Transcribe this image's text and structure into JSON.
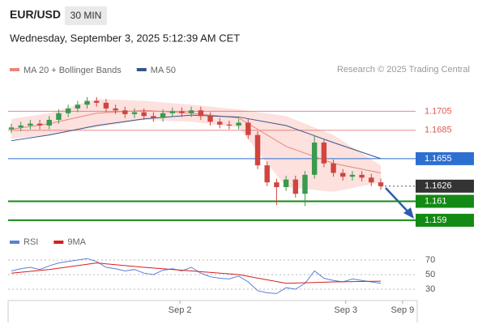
{
  "header": {
    "symbol": "EUR/USD",
    "timeframe": "30 MIN",
    "timestamp": "Wednesday, September 3, 2025 5:12:39 AM CET"
  },
  "chart_data": [
    {
      "type": "candlestick",
      "copyright": "Research © 2025 Trading Central",
      "x": [
        1,
        2,
        3,
        4,
        5,
        6,
        7,
        8,
        9,
        10,
        11,
        12,
        13,
        14,
        15,
        16,
        17,
        18,
        19,
        20,
        21,
        22,
        23,
        24,
        25,
        26,
        27,
        28,
        29,
        30,
        31,
        32,
        33,
        34,
        35,
        36,
        37,
        38,
        39,
        40
      ],
      "open": [
        1.1686,
        1.1688,
        1.169,
        1.1692,
        1.169,
        1.1696,
        1.1703,
        1.1708,
        1.1712,
        1.1716,
        1.1714,
        1.1708,
        1.1706,
        1.1702,
        1.1704,
        1.17,
        1.1698,
        1.1703,
        1.1705,
        1.1703,
        1.1706,
        1.17,
        1.1694,
        1.1691,
        1.169,
        1.1693,
        1.168,
        1.1648,
        1.163,
        1.1625,
        1.1633,
        1.1618,
        1.1638,
        1.1672,
        1.165,
        1.164,
        1.1636,
        1.1638,
        1.1635,
        1.163
      ],
      "high": [
        1.1692,
        1.1694,
        1.1696,
        1.1696,
        1.17,
        1.1707,
        1.1712,
        1.1716,
        1.172,
        1.172,
        1.1718,
        1.1712,
        1.171,
        1.1708,
        1.1708,
        1.1704,
        1.1707,
        1.1709,
        1.1709,
        1.171,
        1.171,
        1.1704,
        1.1698,
        1.1695,
        1.1697,
        1.1697,
        1.1684,
        1.1652,
        1.1634,
        1.1637,
        1.1637,
        1.1642,
        1.168,
        1.1676,
        1.1654,
        1.1644,
        1.1642,
        1.1642,
        1.1639,
        1.1634
      ],
      "low": [
        1.1682,
        1.1684,
        1.1686,
        1.1686,
        1.1686,
        1.1692,
        1.1699,
        1.1704,
        1.1708,
        1.171,
        1.1704,
        1.1702,
        1.1698,
        1.1698,
        1.1696,
        1.1694,
        1.1694,
        1.1699,
        1.1699,
        1.1699,
        1.1696,
        1.169,
        1.1687,
        1.1686,
        1.1686,
        1.1676,
        1.1644,
        1.1626,
        1.1606,
        1.1621,
        1.1614,
        1.1605,
        1.1634,
        1.1646,
        1.1636,
        1.1632,
        1.1632,
        1.1631,
        1.1626,
        1.1622
      ],
      "close": [
        1.1688,
        1.169,
        1.1692,
        1.169,
        1.1696,
        1.1703,
        1.1708,
        1.1712,
        1.1716,
        1.1714,
        1.1708,
        1.1706,
        1.1702,
        1.1704,
        1.17,
        1.1698,
        1.1703,
        1.1705,
        1.1703,
        1.1706,
        1.17,
        1.1694,
        1.1691,
        1.169,
        1.1693,
        1.168,
        1.1648,
        1.163,
        1.1625,
        1.1633,
        1.1618,
        1.1638,
        1.1672,
        1.165,
        1.164,
        1.1636,
        1.1638,
        1.1635,
        1.163,
        1.1626
      ],
      "up_color": "#3a9a4e",
      "down_color": "#d0453f",
      "series": [
        {
          "name": "MA 20 + Bollinger Bands",
          "color": "#e8857c",
          "x": [
            1,
            5,
            10,
            15,
            20,
            25,
            30,
            35,
            40
          ],
          "values": [
            1.1686,
            1.1692,
            1.1703,
            1.1706,
            1.1703,
            1.1698,
            1.1668,
            1.165,
            1.164
          ]
        },
        {
          "name": "MA 50",
          "color": "#34558f",
          "x": [
            1,
            5,
            10,
            15,
            20,
            25,
            30,
            35,
            40
          ],
          "values": [
            1.1674,
            1.168,
            1.169,
            1.1697,
            1.1701,
            1.1699,
            1.169,
            1.1672,
            1.1655
          ]
        }
      ],
      "band_x": [
        1,
        5,
        10,
        15,
        20,
        25,
        30,
        35,
        40
      ],
      "band_upper": [
        1.1697,
        1.1703,
        1.1718,
        1.1716,
        1.1712,
        1.1707,
        1.17,
        1.168,
        1.1648
      ],
      "band_lower": [
        1.1676,
        1.168,
        1.1688,
        1.1696,
        1.1694,
        1.1688,
        1.1625,
        1.162,
        1.163
      ],
      "band_color": "#fbd9d6",
      "levels": [
        {
          "value": 1.1705,
          "color": "#e05a52"
        },
        {
          "value": 1.1685,
          "color": "#e05a52"
        },
        {
          "value": 1.1655,
          "color": "#2d6fd1"
        },
        {
          "value": 1.1626,
          "color": "#333333"
        },
        {
          "value": 1.161,
          "color": "#138a13"
        },
        {
          "value": 1.159,
          "color": "#138a13"
        }
      ],
      "ylim": [
        1.1566,
        1.1737
      ],
      "xlim": [
        1,
        40
      ],
      "xticks": [
        {
          "value": 18.8,
          "label": "Sep 2"
        },
        {
          "value": 36.3,
          "label": "Sep 3"
        },
        {
          "value": 42.3,
          "label": "Sep 9"
        }
      ]
    },
    {
      "type": "line",
      "series": [
        {
          "name": "RSI",
          "color": "#5b7fd6",
          "x": [
            1,
            2,
            3,
            4,
            5,
            6,
            7,
            8,
            9,
            10,
            11,
            12,
            13,
            14,
            15,
            16,
            17,
            18,
            19,
            20,
            21,
            22,
            23,
            24,
            25,
            26,
            27,
            28,
            29,
            30,
            31,
            32,
            33,
            34,
            35,
            36,
            37,
            38,
            39,
            40
          ],
          "values": [
            55,
            58,
            60,
            57,
            62,
            66,
            68,
            70,
            72,
            68,
            60,
            58,
            55,
            57,
            52,
            50,
            56,
            58,
            55,
            60,
            52,
            47,
            45,
            44,
            48,
            40,
            28,
            25,
            24,
            32,
            30,
            38,
            55,
            45,
            42,
            40,
            44,
            42,
            40,
            38
          ]
        },
        {
          "name": "9MA",
          "color": "#d42020",
          "x": [
            1,
            5,
            10,
            15,
            20,
            25,
            30,
            35,
            40
          ],
          "values": [
            52,
            57,
            66,
            60,
            55,
            50,
            38,
            40,
            41
          ]
        }
      ],
      "ylim": [
        20,
        80
      ],
      "yticks": [
        70,
        50,
        30
      ]
    }
  ]
}
